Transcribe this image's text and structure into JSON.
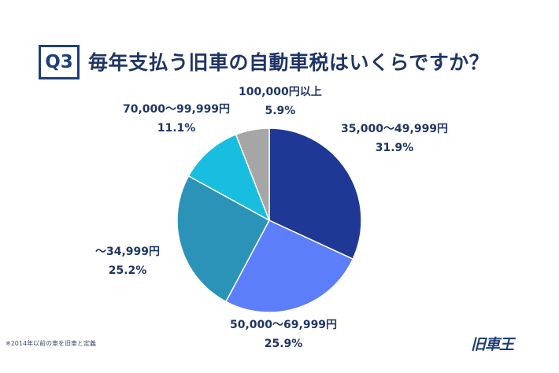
{
  "header": {
    "badge": "Q3",
    "question": "毎年支払う旧車の自動車税はいくらですか？"
  },
  "chart_data": {
    "type": "pie",
    "title": "毎年支払う旧車の自動車税はいくらですか？",
    "slices": [
      {
        "label": "35,000〜49,999円",
        "pct_text": "31.9%",
        "value": 31.9,
        "color": "#1f3896"
      },
      {
        "label": "50,000〜69,999円",
        "pct_text": "25.9%",
        "value": 25.9,
        "color": "#5d7efa"
      },
      {
        "label": "〜34,999円",
        "pct_text": "25.2%",
        "value": 25.2,
        "color": "#2b93b8"
      },
      {
        "label": "70,000〜99,999円",
        "pct_text": "11.1%",
        "value": 11.1,
        "color": "#17bedf"
      },
      {
        "label": "100,000円以上",
        "pct_text": "5.9%",
        "value": 5.9,
        "color": "#a6a6a6"
      }
    ]
  },
  "footer": {
    "note": "※2014年以前の車を旧車と定義",
    "brand": "旧車王"
  }
}
